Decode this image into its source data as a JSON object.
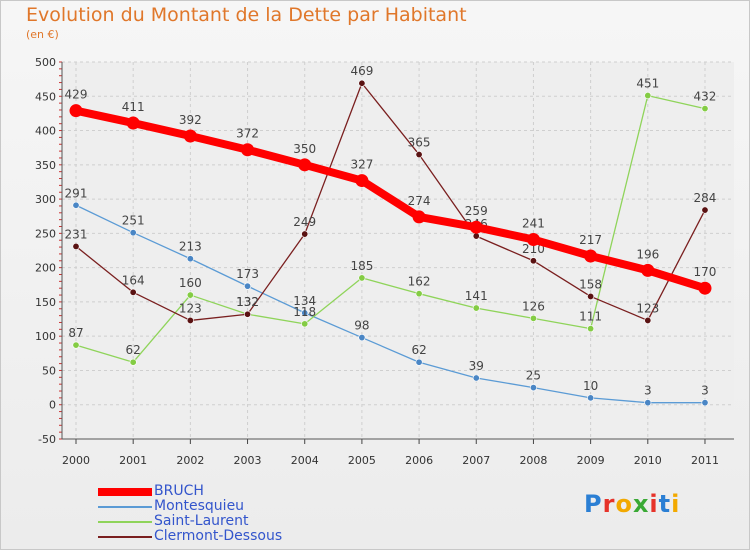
{
  "title": "Evolution du Montant de la Dette par Habitant",
  "subtitle": "(en €)",
  "logo": {
    "letters": [
      "P",
      "r",
      "o",
      "x",
      "i",
      "t",
      "i"
    ],
    "colors": [
      "#2b7fd4",
      "#e6332a",
      "#f2a900",
      "#3aa935",
      "#e6332a",
      "#2b7fd4",
      "#f2a900"
    ]
  },
  "chart_data": {
    "type": "line",
    "x": [
      "2000",
      "2001",
      "2002",
      "2003",
      "2004",
      "2005",
      "2006",
      "2007",
      "2008",
      "2009",
      "2010",
      "2011"
    ],
    "ylim": [
      -50,
      500
    ],
    "yticks": [
      "-50",
      "0",
      "50",
      "100",
      "150",
      "200",
      "250",
      "300",
      "350",
      "400",
      "450",
      "500"
    ],
    "grid": true,
    "legend_position": "bottom-left",
    "series": [
      {
        "name": "BRUCH",
        "color": "#ff0000",
        "values": [
          429,
          411,
          392,
          372,
          350,
          327,
          274,
          259,
          241,
          217,
          196,
          170
        ]
      },
      {
        "name": "Montesquieu",
        "color": "#5b9bd5",
        "values": [
          291,
          251,
          213,
          173,
          134,
          98,
          62,
          39,
          25,
          10,
          3,
          3
        ]
      },
      {
        "name": "Saint-Laurent",
        "color": "#8fd45a",
        "values": [
          87,
          62,
          160,
          132,
          118,
          185,
          162,
          141,
          126,
          111,
          451,
          432
        ]
      },
      {
        "name": "Clermont-Dessous",
        "color": "#7a1f1f",
        "values": [
          231,
          164,
          123,
          132,
          249,
          469,
          365,
          246,
          210,
          158,
          123,
          284
        ]
      }
    ]
  }
}
